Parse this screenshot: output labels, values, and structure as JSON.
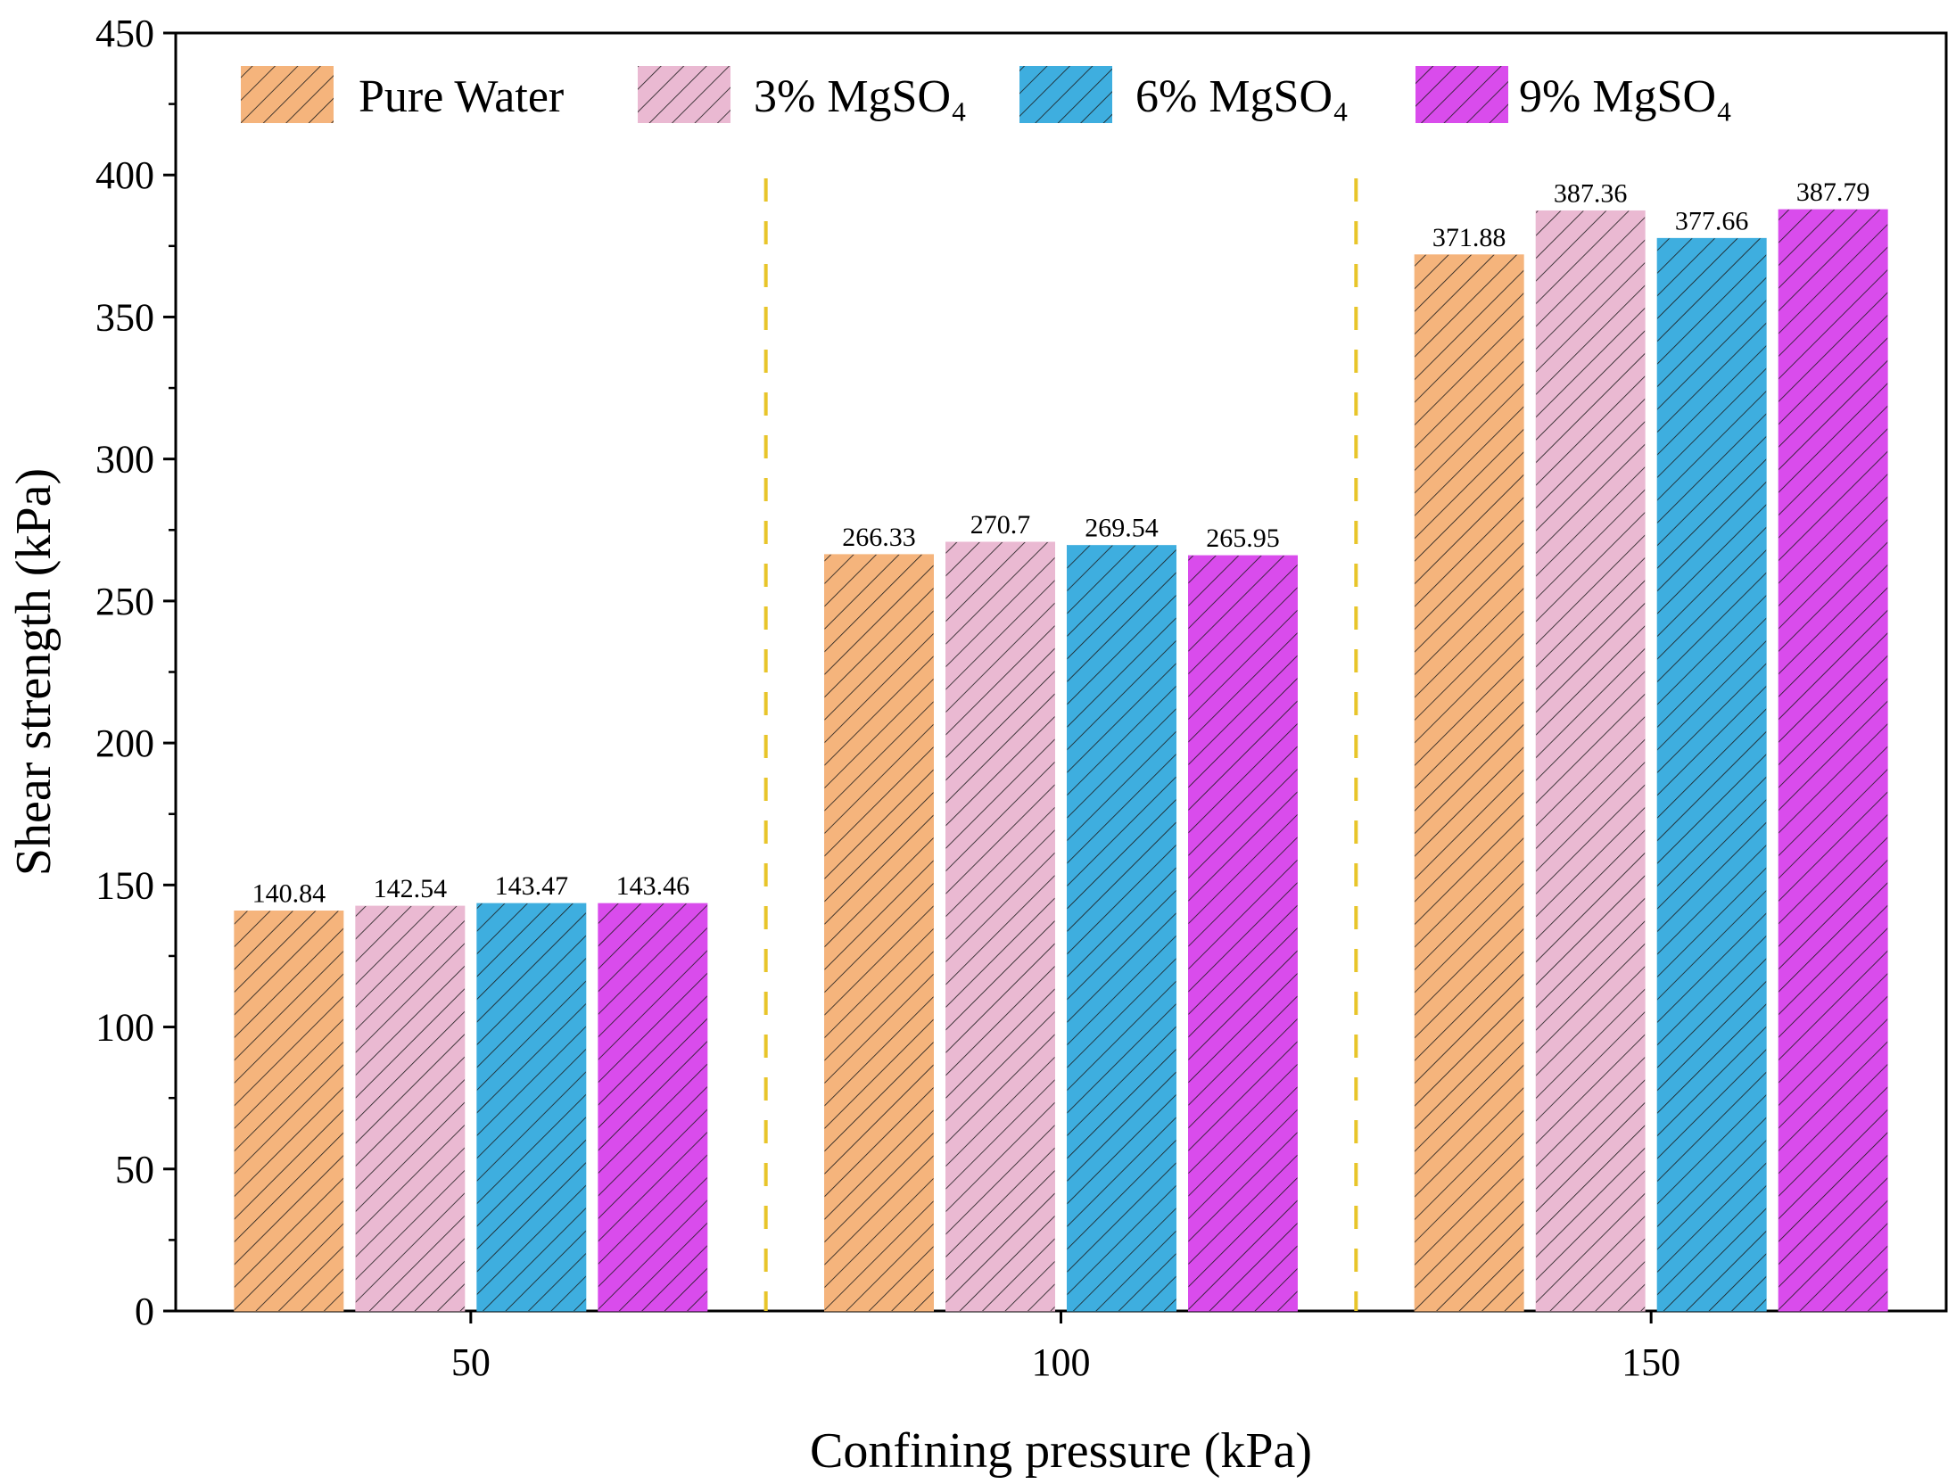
{
  "chart_data": {
    "type": "bar",
    "title": "",
    "xlabel": "Confining pressure (kPa)",
    "ylabel": "Shear strength (kPa)",
    "categories": [
      "50",
      "100",
      "150"
    ],
    "ylim": [
      0,
      450
    ],
    "yticks": [
      0,
      50,
      100,
      150,
      200,
      250,
      300,
      350,
      400,
      450
    ],
    "yticks_minor_step": 25,
    "grid": false,
    "legend_position": "top",
    "group_separators": "dashed-vertical",
    "series": [
      {
        "name": "Pure Water",
        "color": "#F5B47C",
        "values": [
          140.84,
          266.33,
          371.88
        ],
        "labels": [
          "140.84",
          "266.33",
          "371.88"
        ]
      },
      {
        "name": "3% MgSO₄",
        "color": "#EAB9D2",
        "values": [
          142.54,
          270.7,
          387.36
        ],
        "labels": [
          "142.54",
          "270.7",
          "387.36"
        ]
      },
      {
        "name": "6% MgSO₄",
        "color": "#3EAEDF",
        "values": [
          143.47,
          269.54,
          377.66
        ],
        "labels": [
          "143.47",
          "269.54",
          "377.66"
        ]
      },
      {
        "name": "9% MgSO₄",
        "color": "#D94CEC",
        "values": [
          143.46,
          265.95,
          387.79
        ],
        "labels": [
          "143.46",
          "265.95",
          "387.79"
        ]
      }
    ],
    "separator_color": "#E8C52A"
  }
}
